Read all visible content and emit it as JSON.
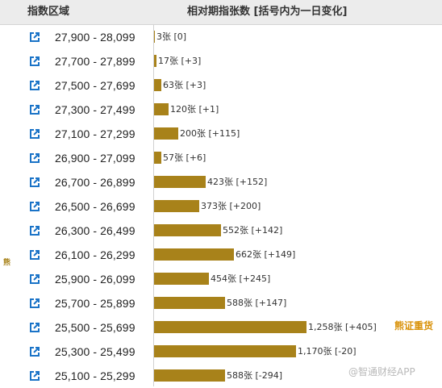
{
  "header": {
    "col1": "指数区域",
    "col2": "相对期指张数 [括号内为一日变化]"
  },
  "side_mark": "熊",
  "highlight_note": "熊证重货",
  "watermark": "@智通财经APP",
  "colors": {
    "bar": "#a8821a",
    "icon": "#1a73c7",
    "highlight": "#d9920a"
  },
  "chart_data": {
    "type": "bar",
    "orientation": "horizontal",
    "title": "",
    "xlabel": "",
    "ylabel": "",
    "unit": "张",
    "xlim": [
      0,
      1258
    ],
    "categories": [
      "27,900 - 28,099",
      "27,700 - 27,899",
      "27,500 - 27,699",
      "27,300 - 27,499",
      "27,100 - 27,299",
      "26,900 - 27,099",
      "26,700 - 26,899",
      "26,500 - 26,699",
      "26,300 - 26,499",
      "26,100 - 26,299",
      "25,900 - 26,099",
      "25,700 - 25,899",
      "25,500 - 25,699",
      "25,300 - 25,499",
      "25,100 - 25,299"
    ],
    "values": [
      3,
      17,
      63,
      120,
      200,
      57,
      423,
      373,
      552,
      662,
      454,
      588,
      1258,
      1170,
      588
    ],
    "labels": [
      "3张 [0]",
      "17张 [+3]",
      "63张 [+3]",
      "120张 [+1]",
      "200张 [+115]",
      "57张 [+6]",
      "423张 [+152]",
      "373张 [+200]",
      "552张 [+142]",
      "662张 [+149]",
      "454张 [+245]",
      "588张 [+147]",
      "1,258张 [+405]",
      "1,170张 [-20]",
      "588张 [-294]"
    ],
    "daily_change": [
      0,
      3,
      3,
      1,
      115,
      6,
      152,
      200,
      142,
      149,
      245,
      147,
      405,
      -20,
      -294
    ]
  }
}
